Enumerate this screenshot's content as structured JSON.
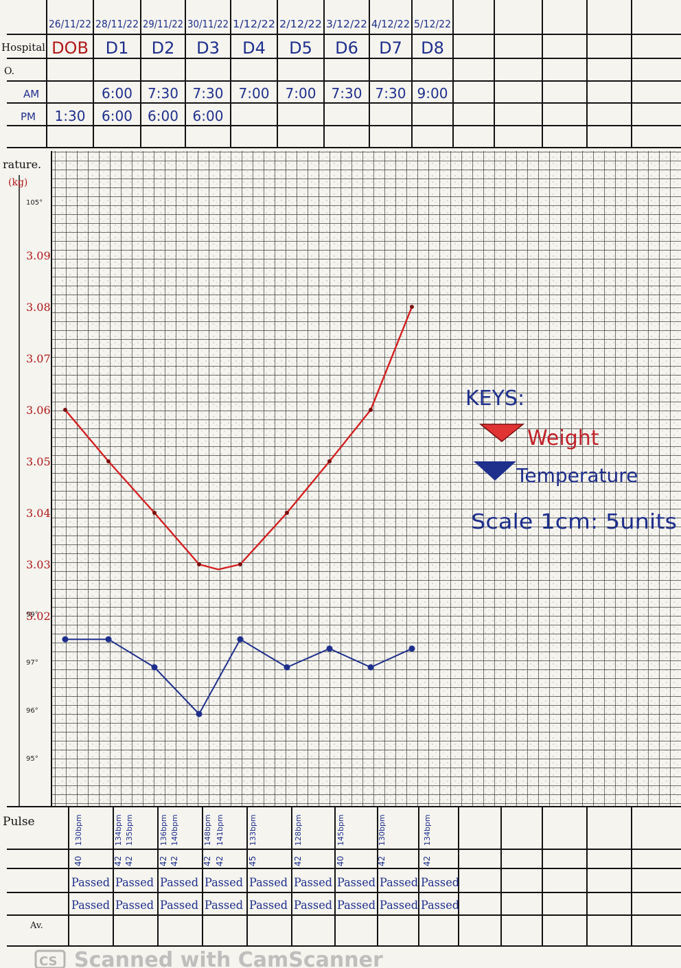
{
  "header": {
    "dates": [
      "26/11/22",
      "28/11/22",
      "29/11/22",
      "30/11/22",
      "1/12/22",
      "2/12/22",
      "3/12/22",
      "4/12/22",
      "5/12/22"
    ],
    "hospital_label": "Hospital",
    "day_codes": [
      "DOB",
      "D1",
      "D2",
      "D3",
      "D4",
      "D5",
      "D6",
      "D7",
      "D8"
    ],
    "row3_label": "O.",
    "am_label": "AM",
    "am_times": [
      "",
      "6:00",
      "7:30",
      "7:30",
      "7:00",
      "7:00",
      "7:30",
      "7:30",
      "9:00"
    ],
    "pm_label": "PM",
    "pm_times": [
      "1:30",
      "6:00",
      "6:00",
      "6:00",
      "",
      "",
      "",
      "",
      ""
    ]
  },
  "left_labels": {
    "temperature_label": "rature.",
    "kg_label": "(kg)",
    "temp_ticks": [
      "105°",
      "99°",
      "97°",
      "96°",
      "95°"
    ],
    "weight_ticks": [
      "3.09",
      "3.08",
      "3.07",
      "3.06",
      "3.05",
      "3.04",
      "3.03",
      "3.02"
    ]
  },
  "keys": {
    "title": "KEYS:",
    "weight": "Weight",
    "temperature": "Temperature",
    "scale": "Scale 1cm: 5units"
  },
  "pulse_section": {
    "label": "Pulse",
    "pulse": [
      "130bpm",
      "134bpm",
      "135bpm",
      "136bpm",
      "140bpm",
      "148bpm",
      "141bpm",
      "133bpm",
      "128bpm",
      "145bpm",
      "130bpm",
      "134bpm"
    ],
    "resp": [
      "40",
      "42",
      "42",
      "42",
      "42",
      "42",
      "42",
      "45",
      "42",
      "40",
      "42",
      "42"
    ],
    "row1": [
      "Passed",
      "Passed",
      "Passed",
      "Passed",
      "Passed",
      "Passed",
      "Passed",
      "Passed",
      "Passed"
    ],
    "row2": [
      "Passed",
      "Passed",
      "Passed",
      "Passed",
      "Passed",
      "Passed",
      "Passed",
      "Passed",
      "Passed"
    ],
    "bottom_label": "Av."
  },
  "watermark": "Scanned with CamScanner",
  "chart_data": {
    "type": "line",
    "x": [
      "DOB",
      "D1",
      "D2",
      "D3",
      "D3.5",
      "D4",
      "D5",
      "D6",
      "D7",
      "D8"
    ],
    "series": [
      {
        "name": "Weight",
        "color": "#d42020",
        "values": [
          3.06,
          3.05,
          3.04,
          3.03,
          3.029,
          3.03,
          3.04,
          3.05,
          3.06,
          3.08
        ]
      },
      {
        "name": "Temperature",
        "color": "#1e2f8c",
        "values": [
          97.6,
          97.6,
          97.0,
          96.0,
          null,
          97.6,
          97.0,
          97.4,
          97.0,
          97.4
        ]
      }
    ],
    "weight_ylim": [
      3.02,
      3.09
    ],
    "temp_ylim": [
      95,
      105
    ],
    "grid": true
  }
}
